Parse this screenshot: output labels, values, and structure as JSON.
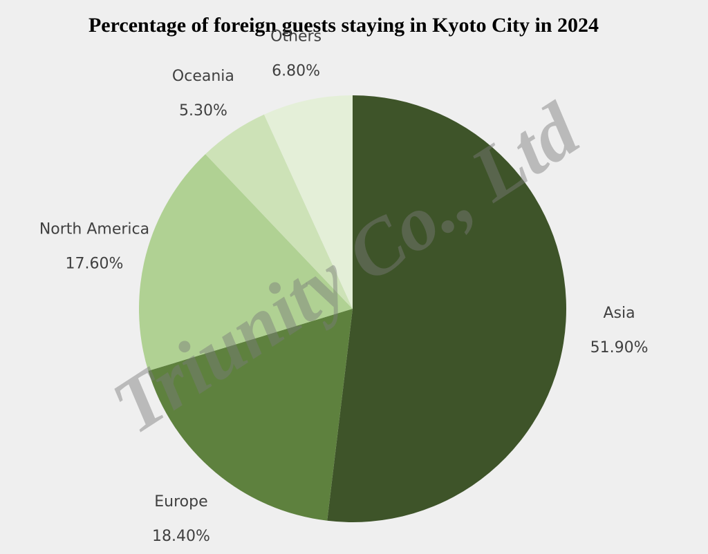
{
  "chart_data": {
    "type": "pie",
    "title": "Percentage of foreign guests staying in Kyoto City in 2024",
    "categories": [
      "Asia",
      "Europe",
      "North America",
      "Oceania",
      "Others"
    ],
    "values": [
      51.9,
      18.4,
      17.6,
      5.3,
      6.8
    ],
    "value_labels": [
      "51.90%",
      "18.40%",
      "17.60%",
      "5.30%",
      "6.80%"
    ],
    "colors": [
      "#3e5429",
      "#5e813e",
      "#b0d193",
      "#cde2b7",
      "#e4efd8"
    ],
    "watermark": "Triunity Co., Ltd"
  }
}
